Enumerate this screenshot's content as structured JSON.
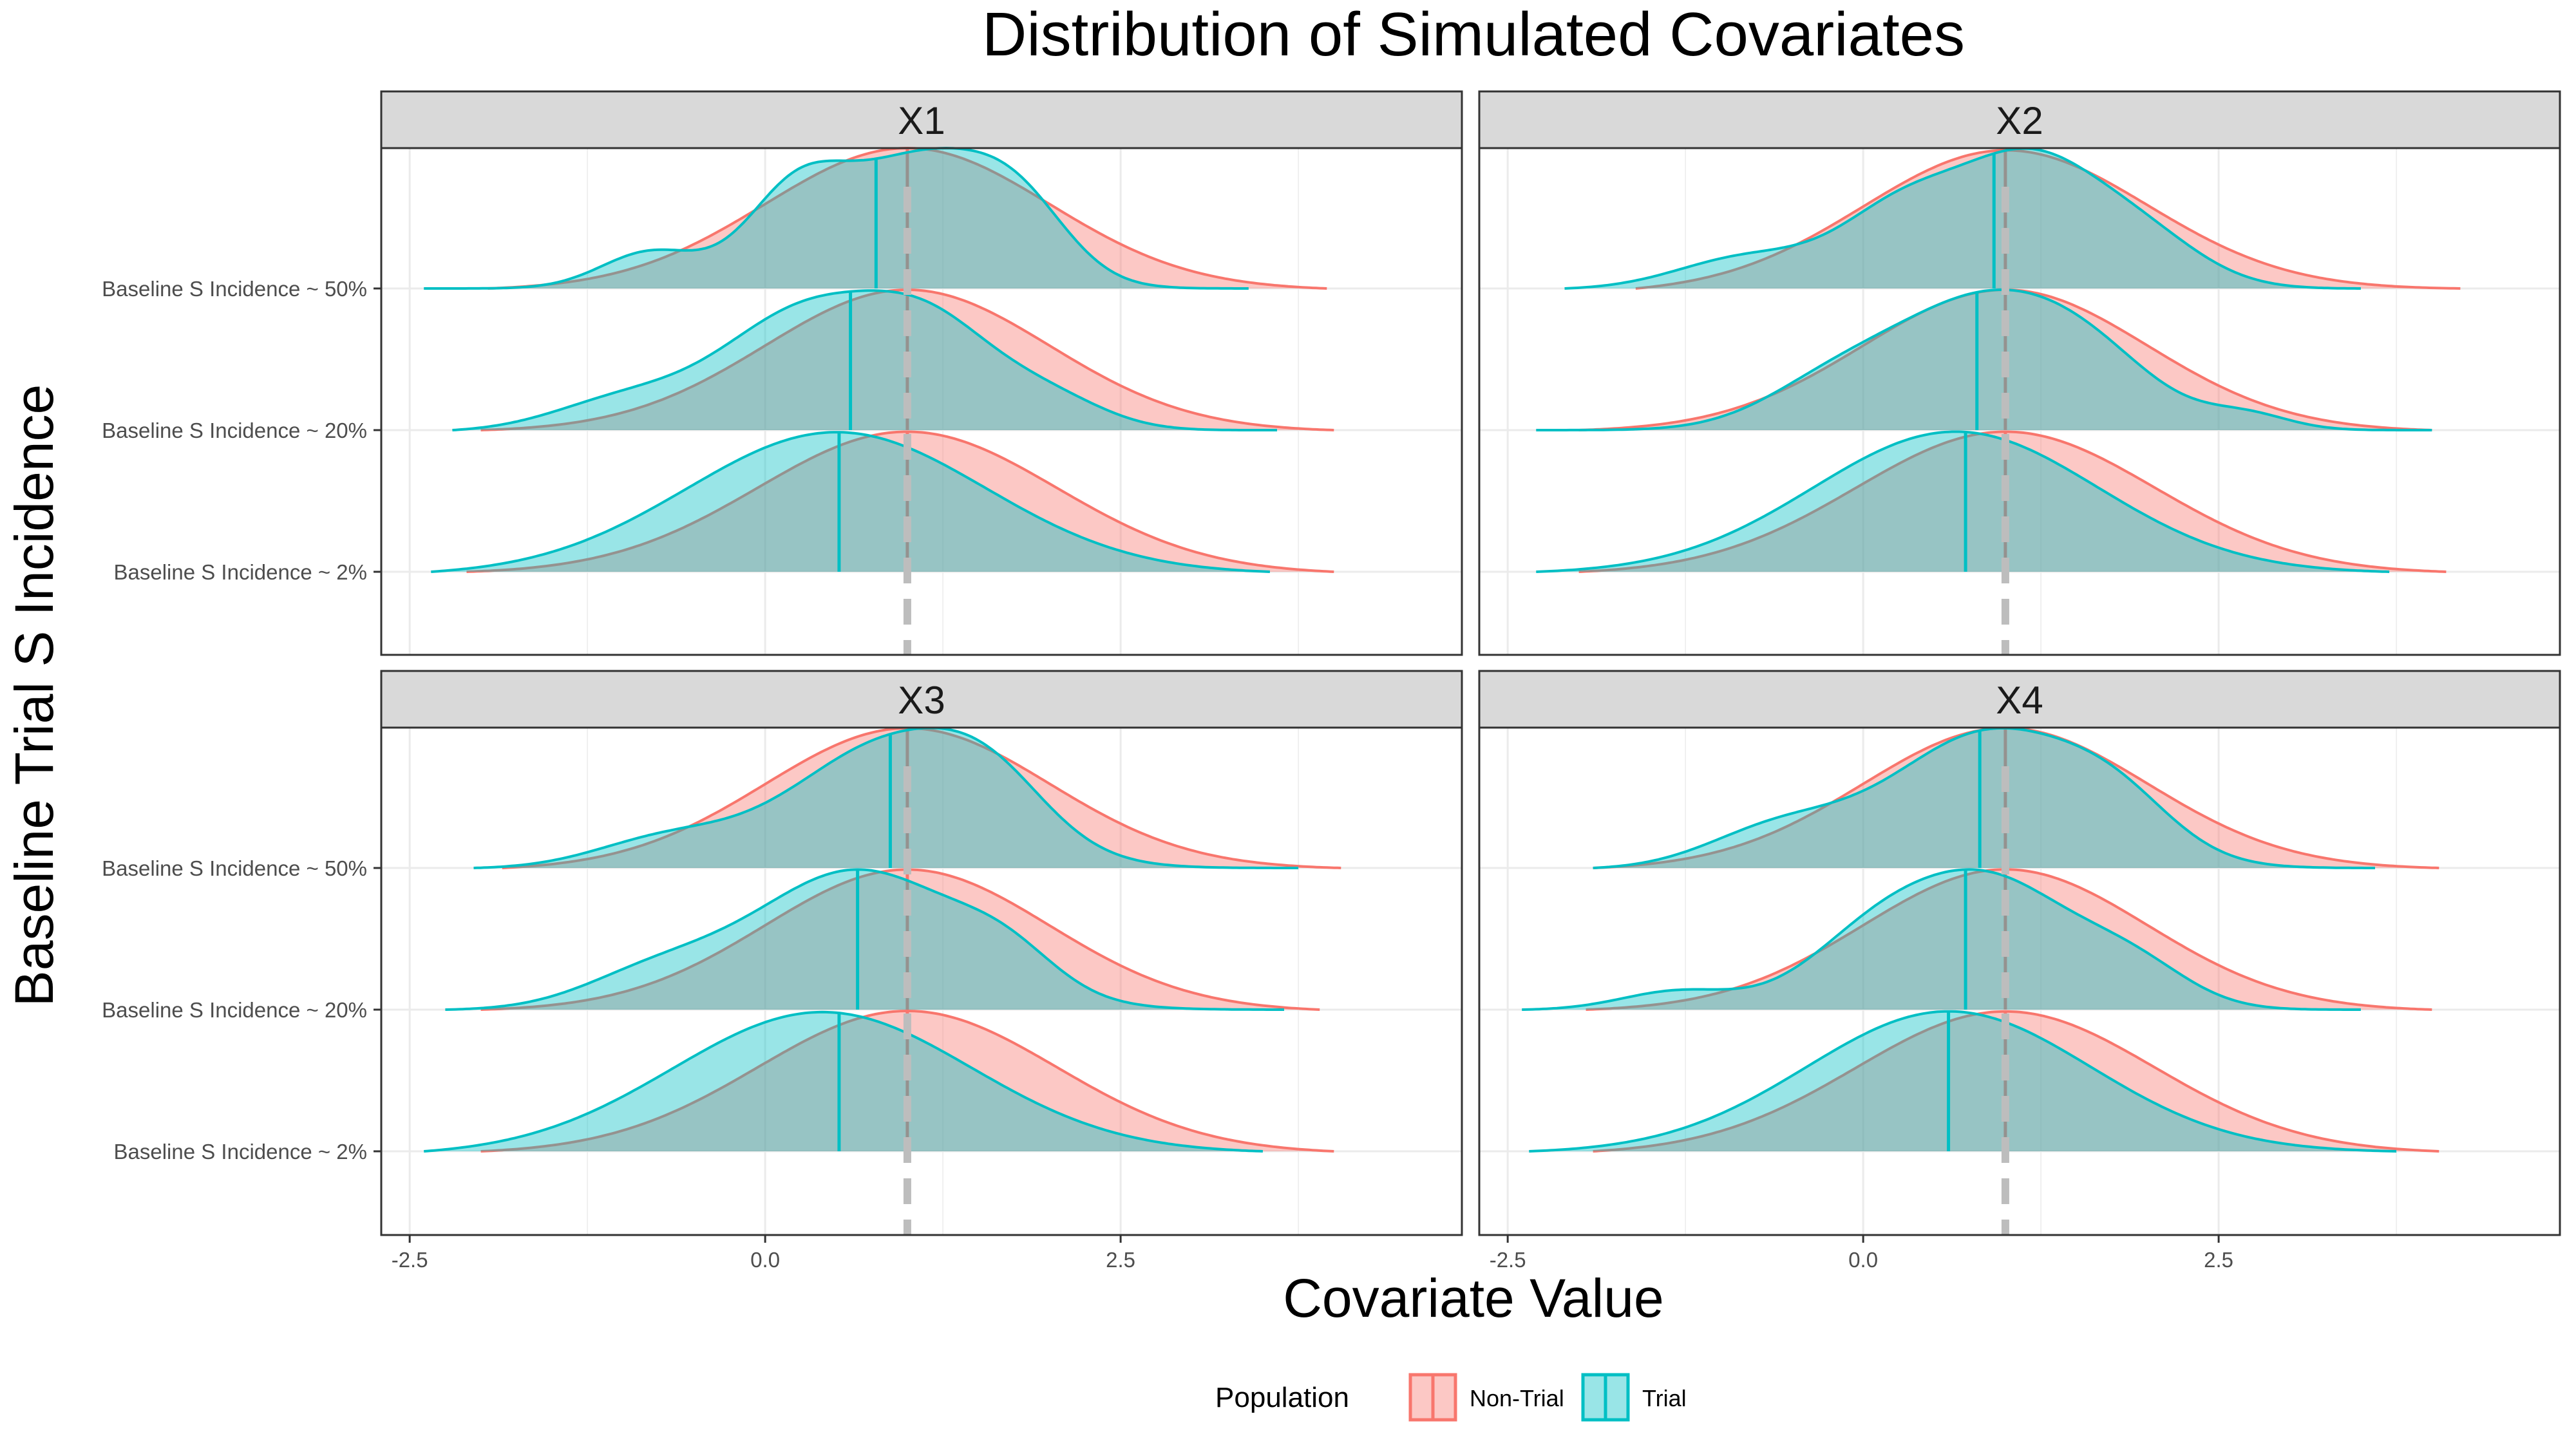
{
  "chart_data": {
    "type": "ridgeline-density",
    "title": "Distribution of Simulated Covariates",
    "xlabel": "Covariate Value",
    "ylabel": "Baseline Trial S Incidence",
    "xlim": [
      -2.7,
      4.9
    ],
    "x_ticks": [
      -2.5,
      0.0,
      2.5
    ],
    "x_tick_labels": [
      "-2.5",
      "0.0",
      "2.5"
    ],
    "grid": true,
    "reference_line_x": 1.0,
    "rows": [
      "Baseline S Incidence ~ 50%",
      "Baseline S Incidence ~ 20%",
      "Baseline S Incidence ~ 2%"
    ],
    "legend": {
      "title": "Population",
      "position": "bottom",
      "entries": [
        {
          "name": "Non-Trial",
          "fill": "#F8766D",
          "line": "#F8766D"
        },
        {
          "name": "Trial",
          "fill": "#00BFC4",
          "line": "#00BFC4"
        }
      ]
    },
    "series_colors": {
      "Non-Trial": "#F8766D",
      "Trial": "#00BFC4"
    },
    "panels": [
      {
        "title": "X1",
        "rows": [
          {
            "label": "Baseline S Incidence ~ 50%",
            "non_trial": {
              "range": [
                -1.95,
                3.95
              ],
              "median": 1.0,
              "peak_x": 1.0,
              "bumps": [
                {
                  "m": 1.0,
                  "s": 1.0,
                  "w": 1.0
                }
              ]
            },
            "trial": {
              "range": [
                -2.4,
                3.4
              ],
              "median": 0.78,
              "peak_x": 1.2,
              "bumps": [
                {
                  "m": 1.1,
                  "s": 0.55,
                  "w": 0.7
                },
                {
                  "m": 0.2,
                  "s": 0.35,
                  "w": 0.45
                },
                {
                  "m": -0.8,
                  "s": 0.35,
                  "w": 0.2
                },
                {
                  "m": 1.8,
                  "s": 0.35,
                  "w": 0.3
                }
              ]
            }
          },
          {
            "label": "Baseline S Incidence ~ 20%",
            "non_trial": {
              "range": [
                -2.0,
                4.0
              ],
              "median": 1.0,
              "peak_x": 1.05,
              "bumps": [
                {
                  "m": 1.0,
                  "s": 1.0,
                  "w": 1.0
                }
              ]
            },
            "trial": {
              "range": [
                -2.2,
                3.6
              ],
              "median": 0.6,
              "peak_x": 0.3,
              "bumps": [
                {
                  "m": 0.3,
                  "s": 0.6,
                  "w": 0.8
                },
                {
                  "m": 1.2,
                  "s": 0.45,
                  "w": 0.55
                },
                {
                  "m": -1.0,
                  "s": 0.5,
                  "w": 0.2
                },
                {
                  "m": 2.0,
                  "s": 0.4,
                  "w": 0.2
                }
              ]
            }
          },
          {
            "label": "Baseline S Incidence ~ 2%",
            "non_trial": {
              "range": [
                -2.1,
                4.0
              ],
              "median": 1.0,
              "peak_x": 1.0,
              "bumps": [
                {
                  "m": 1.0,
                  "s": 1.05,
                  "w": 1.0
                }
              ]
            },
            "trial": {
              "range": [
                -2.35,
                3.55
              ],
              "median": 0.52,
              "peak_x": 0.5,
              "bumps": [
                {
                  "m": 0.5,
                  "s": 1.05,
                  "w": 1.0
                }
              ]
            }
          }
        ]
      },
      {
        "title": "X2",
        "rows": [
          {
            "label": "Baseline S Incidence ~ 50%",
            "non_trial": {
              "range": [
                -1.6,
                4.2
              ],
              "median": 1.0,
              "peak_x": 1.0,
              "bumps": [
                {
                  "m": 1.0,
                  "s": 1.0,
                  "w": 1.0
                }
              ]
            },
            "trial": {
              "range": [
                -2.1,
                3.5
              ],
              "median": 0.92,
              "peak_x": 1.15,
              "bumps": [
                {
                  "m": 1.15,
                  "s": 0.45,
                  "w": 0.7
                },
                {
                  "m": 0.3,
                  "s": 0.45,
                  "w": 0.5
                },
                {
                  "m": 1.9,
                  "s": 0.45,
                  "w": 0.35
                },
                {
                  "m": -0.8,
                  "s": 0.5,
                  "w": 0.2
                }
              ]
            }
          },
          {
            "label": "Baseline S Incidence ~ 20%",
            "non_trial": {
              "range": [
                -2.0,
                4.0
              ],
              "median": 1.0,
              "peak_x": 1.0,
              "bumps": [
                {
                  "m": 1.0,
                  "s": 1.0,
                  "w": 1.0
                }
              ]
            },
            "trial": {
              "range": [
                -2.3,
                4.0
              ],
              "median": 0.8,
              "peak_x": 0.8,
              "bumps": [
                {
                  "m": 0.8,
                  "s": 0.6,
                  "w": 0.8
                },
                {
                  "m": 1.6,
                  "s": 0.5,
                  "w": 0.4
                },
                {
                  "m": -0.2,
                  "s": 0.5,
                  "w": 0.3
                },
                {
                  "m": 2.7,
                  "s": 0.3,
                  "w": 0.1
                }
              ]
            }
          },
          {
            "label": "Baseline S Incidence ~ 2%",
            "non_trial": {
              "range": [
                -2.0,
                4.1
              ],
              "median": 1.0,
              "peak_x": 1.0,
              "bumps": [
                {
                  "m": 1.0,
                  "s": 1.05,
                  "w": 1.0
                }
              ]
            },
            "trial": {
              "range": [
                -2.3,
                3.7
              ],
              "median": 0.72,
              "peak_x": 0.65,
              "bumps": [
                {
                  "m": 0.65,
                  "s": 1.0,
                  "w": 1.0
                }
              ]
            }
          }
        ]
      },
      {
        "title": "X3",
        "rows": [
          {
            "label": "Baseline S Incidence ~ 50%",
            "non_trial": {
              "range": [
                -1.85,
                4.05
              ],
              "median": 1.0,
              "peak_x": 1.0,
              "bumps": [
                {
                  "m": 1.0,
                  "s": 1.0,
                  "w": 1.0
                }
              ]
            },
            "trial": {
              "range": [
                -2.05,
                3.75
              ],
              "median": 0.88,
              "peak_x": 0.9,
              "bumps": [
                {
                  "m": 0.9,
                  "s": 0.7,
                  "w": 0.9
                },
                {
                  "m": 1.6,
                  "s": 0.4,
                  "w": 0.3
                },
                {
                  "m": -0.7,
                  "s": 0.5,
                  "w": 0.2
                }
              ]
            }
          },
          {
            "label": "Baseline S Incidence ~ 20%",
            "non_trial": {
              "range": [
                -2.0,
                3.9
              ],
              "median": 1.0,
              "peak_x": 1.0,
              "bumps": [
                {
                  "m": 1.0,
                  "s": 1.0,
                  "w": 1.0
                }
              ]
            },
            "trial": {
              "range": [
                -2.25,
                3.65
              ],
              "median": 0.65,
              "peak_x": 0.65,
              "bumps": [
                {
                  "m": 0.65,
                  "s": 0.75,
                  "w": 0.9
                },
                {
                  "m": 1.7,
                  "s": 0.35,
                  "w": 0.2
                },
                {
                  "m": -0.8,
                  "s": 0.5,
                  "w": 0.2
                }
              ]
            }
          },
          {
            "label": "Baseline S Incidence ~ 2%",
            "non_trial": {
              "range": [
                -2.0,
                4.0
              ],
              "median": 1.0,
              "peak_x": 1.0,
              "bumps": [
                {
                  "m": 1.0,
                  "s": 1.05,
                  "w": 1.0
                }
              ]
            },
            "trial": {
              "range": [
                -2.4,
                3.5
              ],
              "median": 0.52,
              "peak_x": 0.4,
              "bumps": [
                {
                  "m": 0.4,
                  "s": 1.05,
                  "w": 1.0
                }
              ]
            }
          }
        ]
      },
      {
        "title": "X4",
        "rows": [
          {
            "label": "Baseline S Incidence ~ 50%",
            "non_trial": {
              "range": [
                -1.9,
                4.05
              ],
              "median": 1.0,
              "peak_x": 1.0,
              "bumps": [
                {
                  "m": 1.0,
                  "s": 1.0,
                  "w": 1.0
                }
              ]
            },
            "trial": {
              "range": [
                -1.9,
                3.6
              ],
              "median": 0.82,
              "peak_x": 0.9,
              "bumps": [
                {
                  "m": 0.9,
                  "s": 0.7,
                  "w": 0.9
                },
                {
                  "m": 1.8,
                  "s": 0.4,
                  "w": 0.25
                },
                {
                  "m": -0.6,
                  "s": 0.5,
                  "w": 0.25
                }
              ]
            }
          },
          {
            "label": "Baseline S Incidence ~ 20%",
            "non_trial": {
              "range": [
                -1.95,
                4.0
              ],
              "median": 1.0,
              "peak_x": 1.0,
              "bumps": [
                {
                  "m": 1.0,
                  "s": 1.0,
                  "w": 1.0
                }
              ]
            },
            "trial": {
              "range": [
                -2.4,
                3.5
              ],
              "median": 0.72,
              "peak_x": 0.95,
              "bumps": [
                {
                  "m": 0.95,
                  "s": 0.55,
                  "w": 0.75
                },
                {
                  "m": 0.1,
                  "s": 0.5,
                  "w": 0.45
                },
                {
                  "m": 1.9,
                  "s": 0.4,
                  "w": 0.25
                },
                {
                  "m": -1.3,
                  "s": 0.4,
                  "w": 0.12
                }
              ]
            }
          },
          {
            "label": "Baseline S Incidence ~ 2%",
            "non_trial": {
              "range": [
                -1.9,
                4.05
              ],
              "median": 1.0,
              "peak_x": 1.0,
              "bumps": [
                {
                  "m": 1.0,
                  "s": 1.05,
                  "w": 1.0
                }
              ]
            },
            "trial": {
              "range": [
                -2.35,
                3.75
              ],
              "median": 0.6,
              "peak_x": 0.6,
              "bumps": [
                {
                  "m": 0.6,
                  "s": 1.0,
                  "w": 1.0
                }
              ]
            }
          }
        ]
      }
    ]
  }
}
